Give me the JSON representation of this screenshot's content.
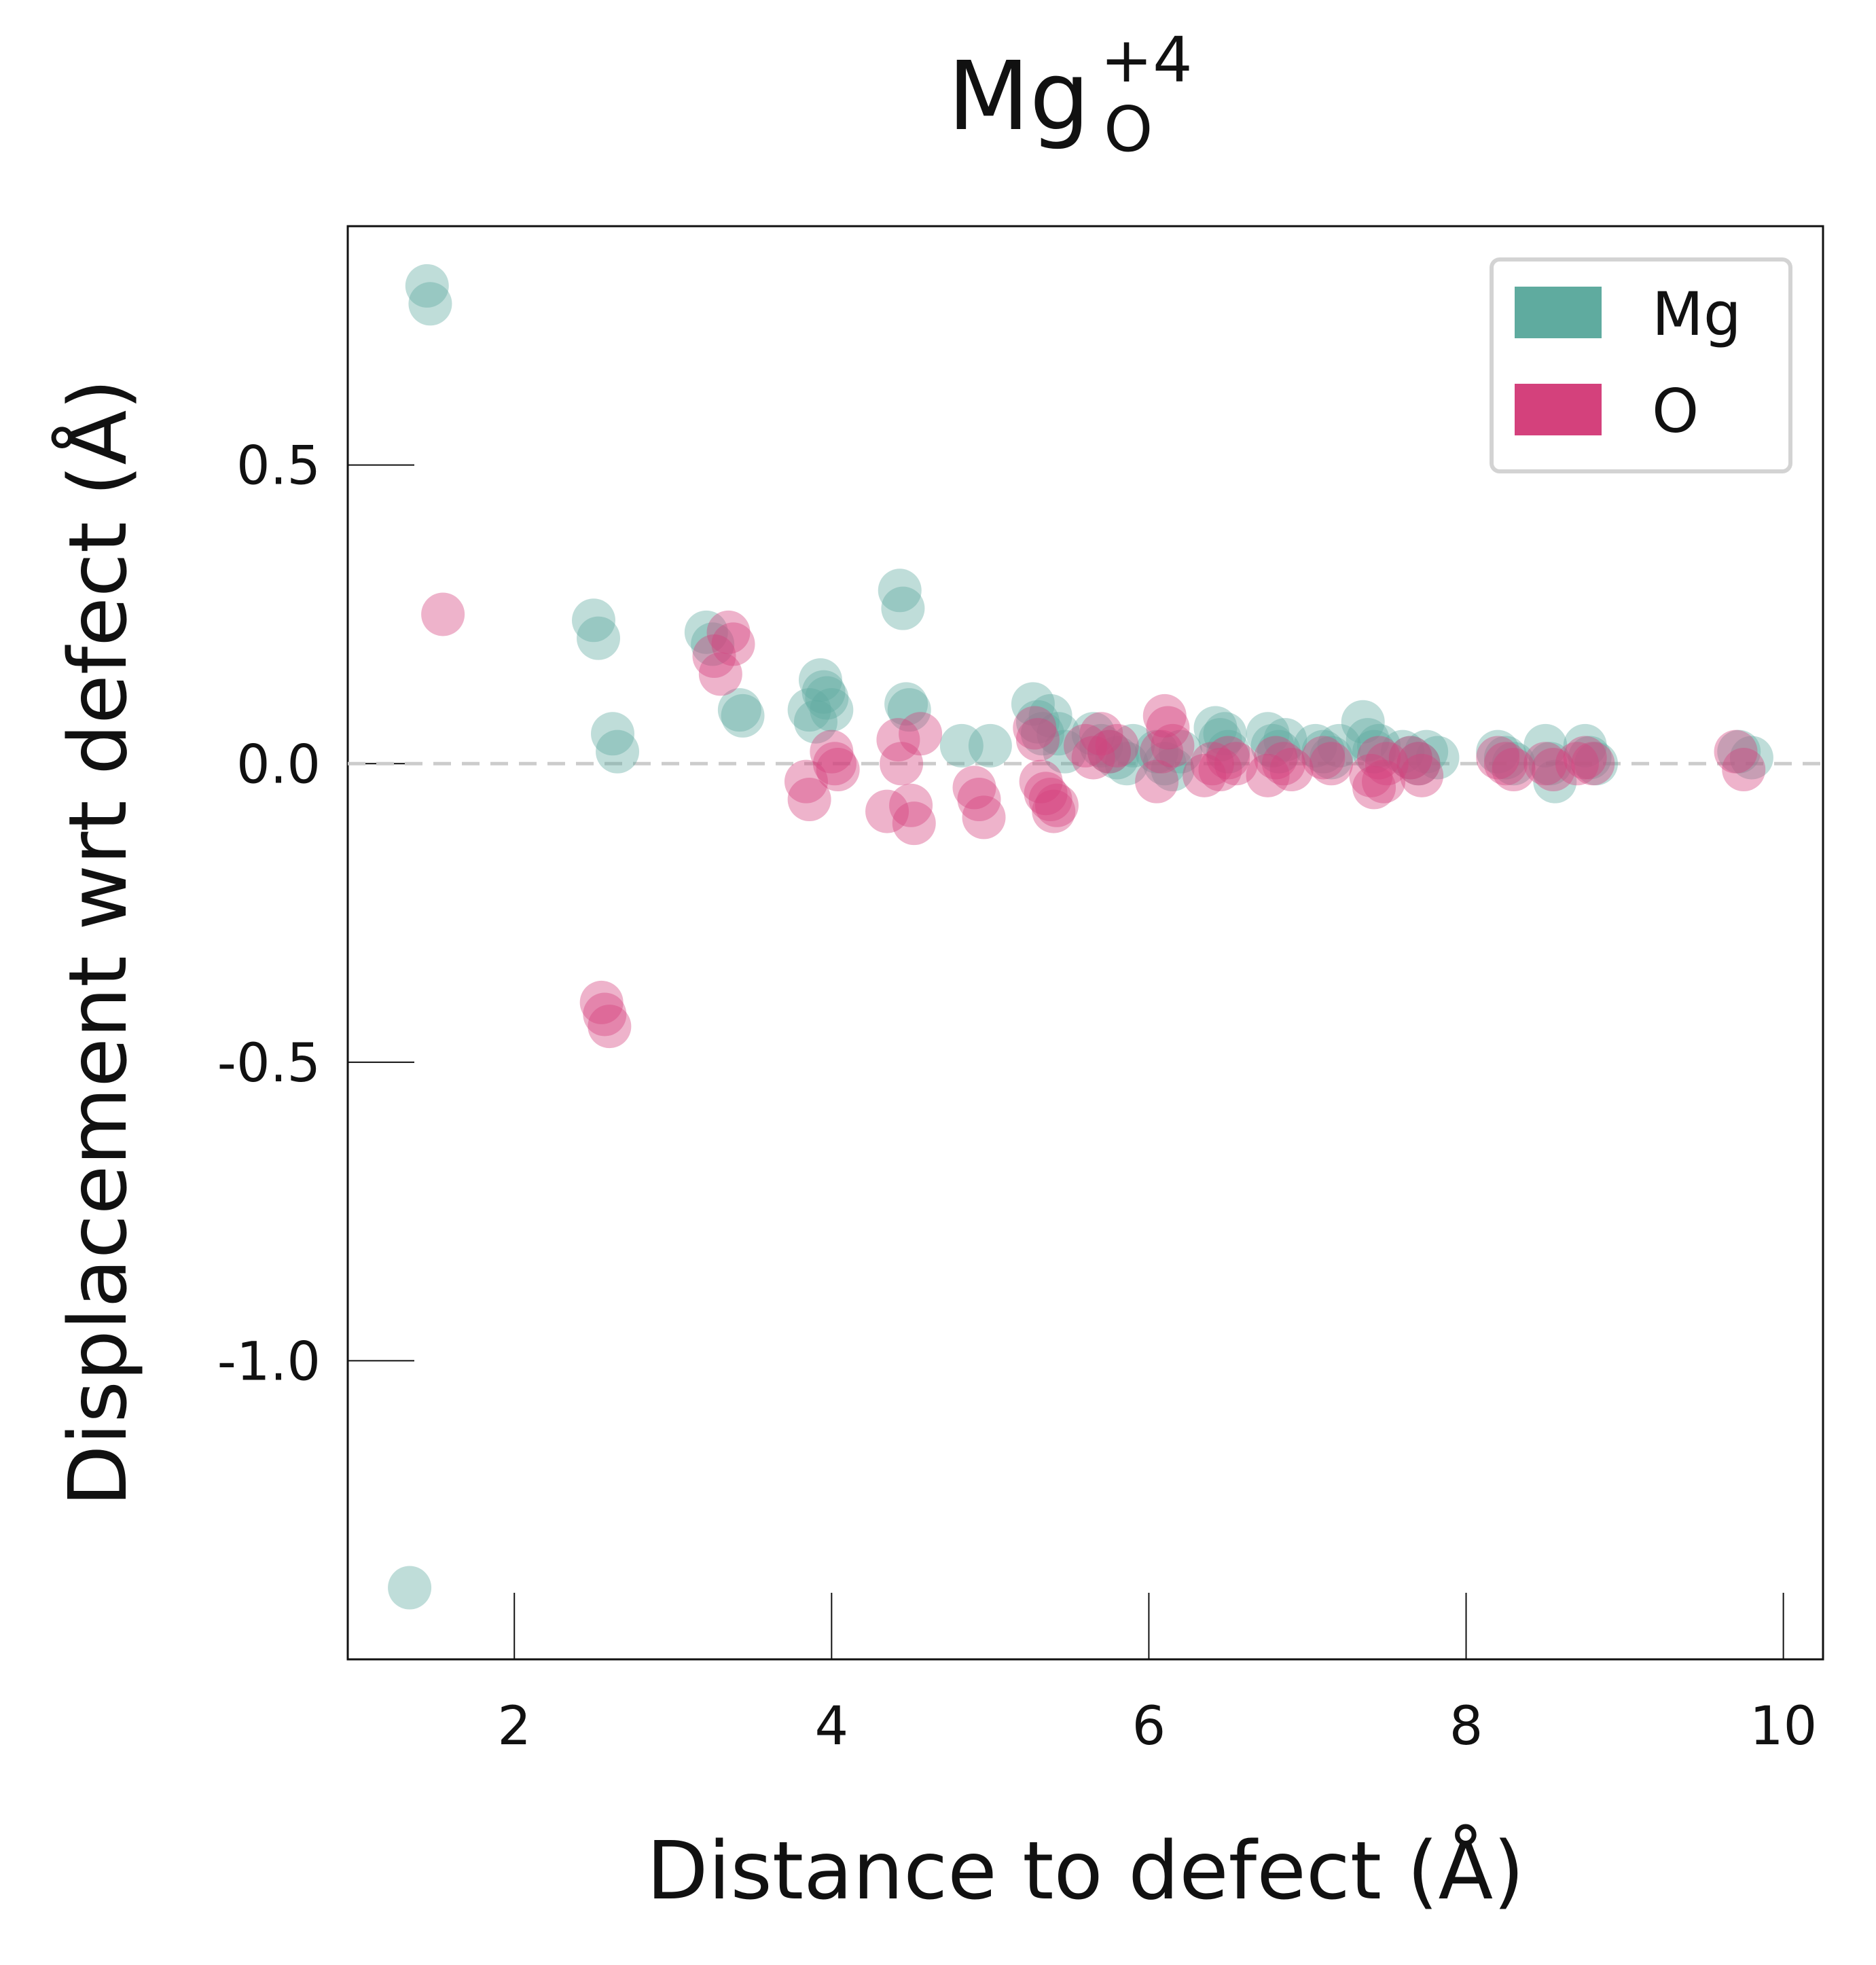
{
  "chart_data": {
    "type": "scatter",
    "title": {
      "main": "Mg",
      "superscript": "+4",
      "subscript": "O"
    },
    "xlabel": "Distance to defect (Å)",
    "ylabel": "Displacement wrt defect (Å)",
    "xlim": [
      0.95,
      10.25
    ],
    "ylim": [
      -1.5,
      0.9
    ],
    "xticks": [
      2,
      4,
      6,
      8,
      10
    ],
    "xtick_labels": [
      "2",
      "4",
      "6",
      "8",
      "10"
    ],
    "yticks": [
      0.5,
      0.0,
      -0.5,
      -1.0
    ],
    "ytick_labels": [
      "0.5",
      "0.0",
      "-0.5",
      "-1.0"
    ],
    "reference_line": {
      "y": 0.0,
      "style": "dashed",
      "color": "#cccccc"
    },
    "grid": false,
    "legend": {
      "position": "top-right",
      "entries": [
        "Mg",
        "O"
      ]
    },
    "marker_alpha": 0.4,
    "series": [
      {
        "name": "Mg",
        "color": "#5fab9f",
        "x": [
          1.34,
          1.45,
          1.47,
          2.5,
          2.53,
          2.62,
          2.65,
          3.21,
          3.25,
          3.42,
          3.44,
          3.86,
          3.9,
          3.93,
          3.95,
          3.97,
          4.0,
          4.43,
          4.45,
          4.47,
          4.49,
          4.82,
          5.0,
          5.27,
          5.3,
          5.33,
          5.38,
          5.43,
          5.47,
          5.65,
          5.7,
          5.75,
          5.8,
          5.86,
          5.9,
          6.05,
          6.1,
          6.15,
          6.2,
          6.42,
          6.45,
          6.48,
          6.5,
          6.75,
          6.78,
          6.82,
          6.86,
          7.05,
          7.1,
          7.15,
          7.2,
          7.35,
          7.38,
          7.42,
          7.45,
          7.6,
          7.65,
          7.7,
          7.75,
          7.82,
          8.2,
          8.25,
          8.3,
          8.5,
          8.53,
          8.56,
          8.75,
          8.78,
          8.82,
          9.72,
          9.8
        ],
        "y": [
          -1.38,
          0.8,
          0.77,
          0.24,
          0.21,
          0.05,
          0.02,
          0.22,
          0.2,
          0.09,
          0.08,
          0.09,
          0.07,
          0.14,
          0.12,
          0.11,
          0.09,
          0.29,
          0.26,
          0.1,
          0.09,
          0.03,
          0.03,
          0.1,
          0.07,
          0.05,
          0.08,
          0.05,
          0.02,
          0.05,
          0.03,
          0.02,
          0.01,
          0.0,
          0.03,
          0.02,
          0.0,
          -0.01,
          0.02,
          0.06,
          0.04,
          0.05,
          0.02,
          0.05,
          0.03,
          0.02,
          0.04,
          0.03,
          0.02,
          0.01,
          0.03,
          0.07,
          0.04,
          0.02,
          0.03,
          0.02,
          0.01,
          0.0,
          0.02,
          0.01,
          0.02,
          0.01,
          0.0,
          0.03,
          0.0,
          -0.03,
          0.03,
          0.01,
          0.0,
          0.02,
          0.01
        ]
      },
      {
        "name": "O",
        "color": "#d4417c",
        "x": [
          1.55,
          2.55,
          2.57,
          2.6,
          3.26,
          3.3,
          3.35,
          3.38,
          3.84,
          3.86,
          4.0,
          4.02,
          4.04,
          4.35,
          4.42,
          4.44,
          4.5,
          4.52,
          4.56,
          4.9,
          4.93,
          4.96,
          5.28,
          5.3,
          5.32,
          5.35,
          5.38,
          5.4,
          5.42,
          5.6,
          5.65,
          5.7,
          5.75,
          5.8,
          6.05,
          6.08,
          6.1,
          6.12,
          6.15,
          6.35,
          6.4,
          6.45,
          6.5,
          6.55,
          6.75,
          6.8,
          6.85,
          6.9,
          7.1,
          7.15,
          7.4,
          7.42,
          7.45,
          7.48,
          7.5,
          7.65,
          7.7,
          7.72,
          8.2,
          8.25,
          8.3,
          8.5,
          8.55,
          8.7,
          8.75,
          8.8,
          9.7,
          9.75
        ],
        "y": [
          0.25,
          -0.4,
          -0.42,
          -0.44,
          0.18,
          0.15,
          0.22,
          0.2,
          -0.03,
          -0.06,
          0.02,
          0.0,
          -0.01,
          -0.08,
          0.04,
          0.0,
          -0.07,
          -0.1,
          0.05,
          -0.04,
          -0.06,
          -0.09,
          0.06,
          0.04,
          -0.03,
          -0.05,
          -0.06,
          -0.08,
          -0.07,
          0.03,
          0.01,
          0.05,
          0.02,
          0.03,
          -0.03,
          0.02,
          0.08,
          0.06,
          0.03,
          -0.02,
          0.0,
          -0.01,
          0.01,
          0.0,
          -0.02,
          0.01,
          0.0,
          -0.01,
          0.01,
          0.0,
          -0.02,
          -0.04,
          0.01,
          -0.03,
          0.0,
          0.01,
          0.0,
          -0.02,
          0.01,
          0.0,
          -0.01,
          0.0,
          -0.01,
          0.0,
          0.01,
          0.0,
          0.02,
          -0.01
        ]
      }
    ]
  }
}
